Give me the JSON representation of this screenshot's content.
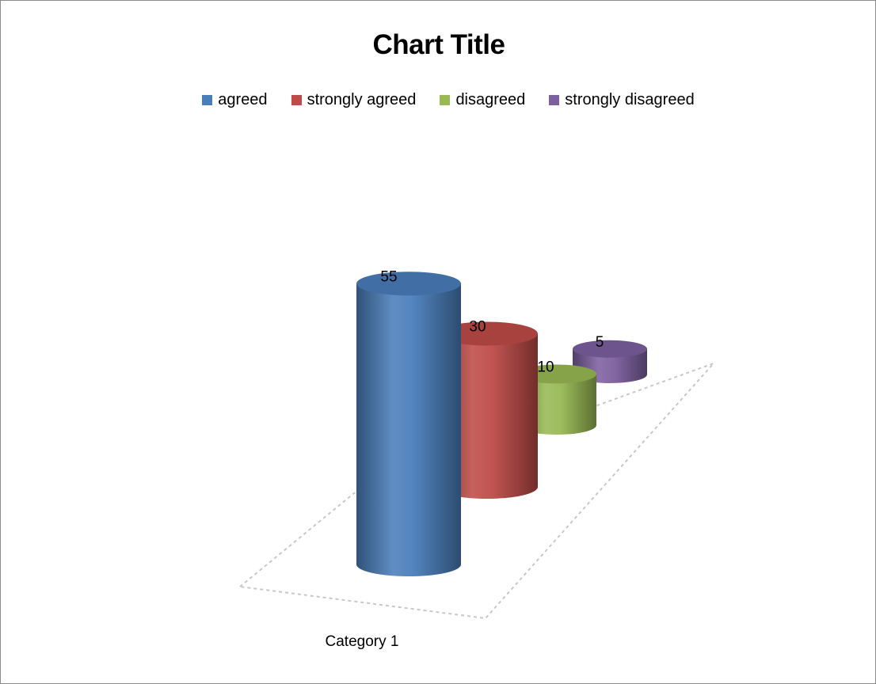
{
  "chart_data": {
    "type": "bar",
    "style": "3d-cylinder",
    "title": "Chart Title",
    "categories": [
      "Category 1"
    ],
    "series": [
      {
        "name": "agreed",
        "values": [
          55
        ],
        "color": "#4a7ebb"
      },
      {
        "name": "strongly agreed",
        "values": [
          30
        ],
        "color": "#be4b48"
      },
      {
        "name": "disagreed",
        "values": [
          10
        ],
        "color": "#98b954"
      },
      {
        "name": "strongly disagreed",
        "values": [
          5
        ],
        "color": "#7d60a0"
      }
    ],
    "legend_position": "top",
    "data_labels": true,
    "grid": false
  }
}
